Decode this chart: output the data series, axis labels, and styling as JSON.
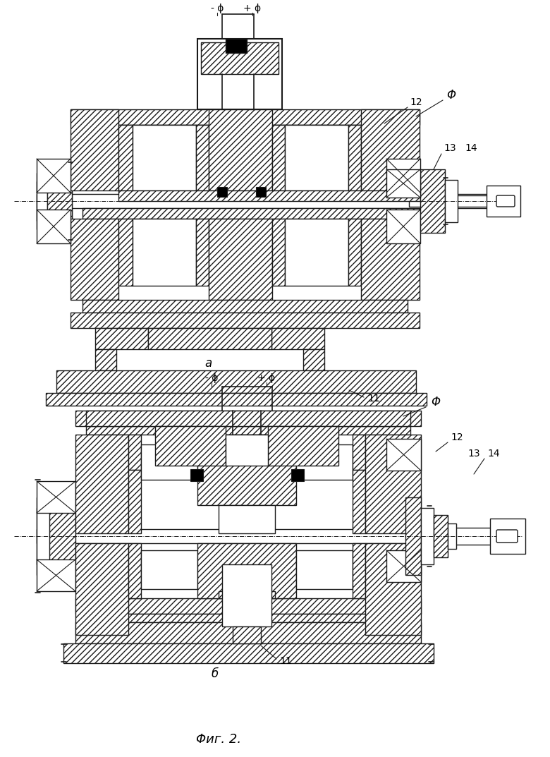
{
  "bg_color": "#ffffff",
  "line_color": "#1a1a1a",
  "fig_width": 7.8,
  "fig_height": 10.73,
  "label_a": "a",
  "label_b": "б",
  "label_fig": "Φиг. 2.",
  "label_Phi": "Φ",
  "label_minus_phi": "- ϕ",
  "label_plus_phi": "+ ϕ"
}
